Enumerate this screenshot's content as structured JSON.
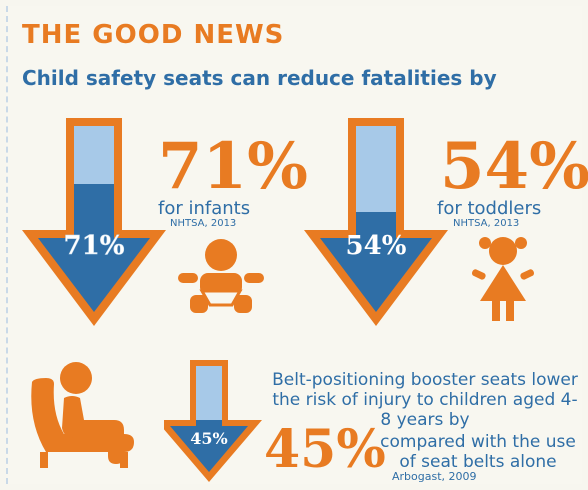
{
  "header": {
    "title": "THE GOOD NEWS",
    "subtitle": "Child safety seats can reduce fatalities by"
  },
  "infants": {
    "percent_big": "71%",
    "arrow_label": "71%",
    "caption": "for infants",
    "source": "NHTSA, 2013",
    "fill_fraction": 0.71
  },
  "toddlers": {
    "percent_big": "54%",
    "arrow_label": "54%",
    "caption": "for toddlers",
    "source": "NHTSA, 2013",
    "fill_fraction": 0.54
  },
  "booster": {
    "text": "Belt-positioning booster seats lower the risk of injury to children aged 4-8 years by",
    "percent_big": "45%",
    "compare": "compared with the use of seat belts alone",
    "arrow_label": "45%",
    "source": "Arbogast, 2009",
    "fill_fraction": 0.45
  },
  "colors": {
    "orange": "#e87b22",
    "dark_blue": "#2f6ea6",
    "light_blue": "#a7c9e8",
    "background": "#f8f7f0"
  },
  "icons": [
    "infant-icon",
    "toddler-icon",
    "seated-person-icon"
  ]
}
